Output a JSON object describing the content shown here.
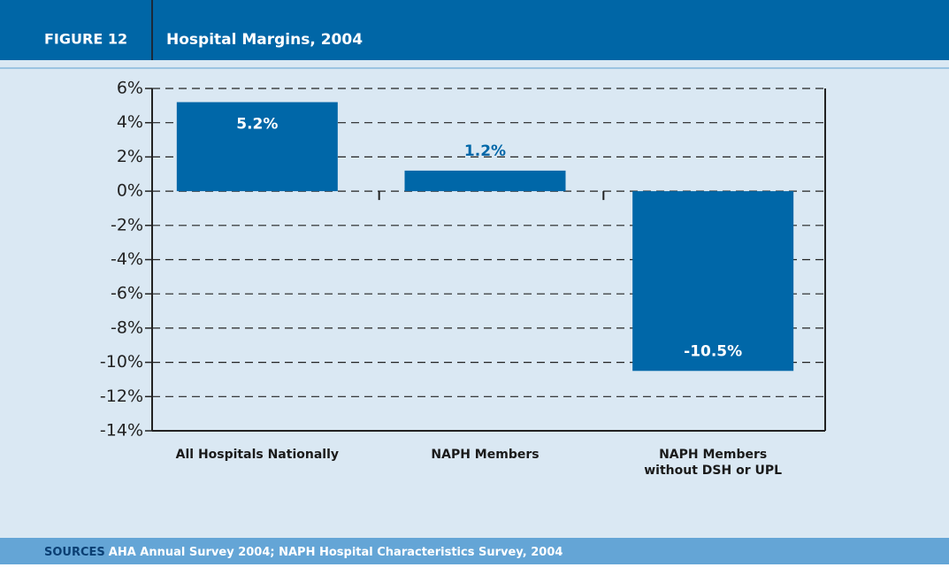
{
  "chart_data": {
    "type": "bar",
    "figure_label": "FIGURE 12",
    "title": "Hospital Margins, 2004",
    "categories": [
      "All Hospitals Nationally",
      "NAPH Members",
      "NAPH Members without DSH or UPL"
    ],
    "values": [
      5.2,
      1.2,
      -10.5
    ],
    "value_labels": [
      "5.2%",
      "1.2%",
      "-10.5%"
    ],
    "color": "#0067a8",
    "ylim": [
      -14,
      6
    ],
    "yticks": [
      {
        "value": 6,
        "label": "6%"
      },
      {
        "value": 4,
        "label": "4%"
      },
      {
        "value": 2,
        "label": "2%"
      },
      {
        "value": 0,
        "label": "0%"
      },
      {
        "value": -2,
        "label": "-2%"
      },
      {
        "value": -4,
        "label": "-4%"
      },
      {
        "value": -6,
        "label": "-6%"
      },
      {
        "value": -8,
        "label": "-8%"
      },
      {
        "value": -10,
        "label": "-10%"
      },
      {
        "value": -12,
        "label": "-12%"
      },
      {
        "value": -14,
        "label": "-14%"
      }
    ],
    "grid": true,
    "source_label": "SOURCES",
    "source": "AHA Annual Survey 2004; NAPH Hospital Characteristics Survey, 2004"
  }
}
